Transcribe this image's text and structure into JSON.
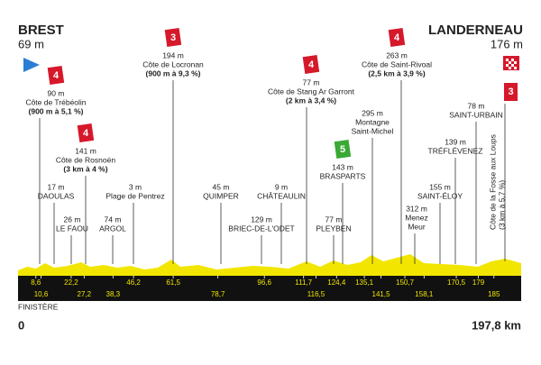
{
  "start": {
    "name": "BREST",
    "altitude": "69 m"
  },
  "finish": {
    "name": "LANDERNEAU",
    "altitude": "176 m"
  },
  "waypoints": [
    {
      "lines": [
        "90 m",
        "Côte de Trébéolin",
        "(900 m à 5,1 %)"
      ],
      "category": "4"
    },
    {
      "lines": [
        "141 m",
        "Côte de Rosnoën",
        "(3 km à 4 %)"
      ],
      "category": "4"
    },
    {
      "lines": [
        "17 m",
        "DAOULAS"
      ]
    },
    {
      "lines": [
        "26 m",
        "LE FAOU"
      ]
    },
    {
      "lines": [
        "3 m",
        "Plage de Pentrez"
      ]
    },
    {
      "lines": [
        "74 m",
        "ARGOL"
      ]
    },
    {
      "lines": [
        "194 m",
        "Côte de Locronan",
        "(900 m à 9,3 %)"
      ],
      "category": "3"
    },
    {
      "lines": [
        "45 m",
        "QUIMPER"
      ]
    },
    {
      "lines": [
        "9 m",
        "CHÂTEAULIN"
      ]
    },
    {
      "lines": [
        "129 m",
        "BRIEC-DE-L'ODET"
      ]
    },
    {
      "lines": [
        "77 m",
        "Côte de Stang Ar Garront",
        "(2 km à 3,4 %)"
      ],
      "category": "4"
    },
    {
      "lines": [
        "143 m",
        "BRASPARTS"
      ],
      "category": "5"
    },
    {
      "lines": [
        "77 m",
        "PLEYBEN"
      ]
    },
    {
      "lines": [
        "295 m",
        "Montagne",
        "Saint-Michel"
      ]
    },
    {
      "lines": [
        "263 m",
        "Côte de Saint-Rivoal",
        "(2,5 km à 3,9 %)"
      ],
      "category": "4"
    },
    {
      "lines": [
        "312 m",
        "Menez",
        "Meur"
      ]
    },
    {
      "lines": [
        "139 m",
        "TRÉFLÉVENEZ"
      ]
    },
    {
      "lines": [
        "155 m",
        "SAINT-ÉLOY"
      ]
    },
    {
      "lines": [
        "78 m",
        "SAINT-URBAIN"
      ]
    },
    {
      "lines": [
        "Côte de la Fosse aux Loups",
        "(3 km à 5,7 %)"
      ],
      "category": "3"
    }
  ],
  "km_marks_top": [
    {
      "value": 8.6,
      "label": "8,6"
    },
    {
      "value": 22.2,
      "label": "22,2"
    },
    {
      "value": 46.2,
      "label": "46,2"
    },
    {
      "value": 61.5,
      "label": "61,5"
    },
    {
      "value": 96.6,
      "label": "96,6"
    },
    {
      "value": 111.7,
      "label": "111,7"
    },
    {
      "value": 124.4,
      "label": "124,4"
    },
    {
      "value": 135.1,
      "label": "135,1"
    },
    {
      "value": 150.7,
      "label": "150,7"
    },
    {
      "value": 170.5,
      "label": "170,5"
    },
    179
  ],
  "km_marks_bottom": [
    {
      "value": 10.6,
      "label": "10,6"
    },
    {
      "value": 27.2,
      "label": "27,2"
    },
    {
      "value": 38.3,
      "label": "38,3"
    },
    {
      "value": 78.7,
      "label": "78,7"
    },
    {
      "value": 116.5,
      "label": "116,5"
    },
    {
      "value": 141.5,
      "label": "141,5"
    },
    {
      "value": 158.1,
      "label": "158,1"
    },
    185
  ],
  "region": "FINISTÈRE",
  "distance_start": "0",
  "distance_end": "197,8 km"
}
